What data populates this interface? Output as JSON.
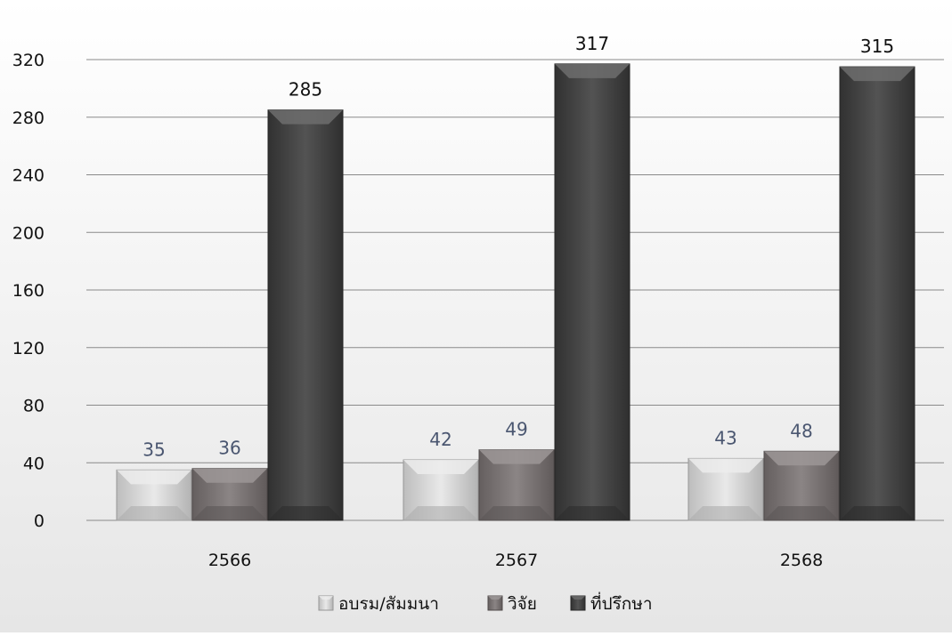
{
  "chart_data": {
    "type": "bar",
    "categories": [
      "2566",
      "2567",
      "2568"
    ],
    "series": [
      {
        "name": "อบรม/สัมมนา",
        "values": [
          35,
          42,
          43
        ],
        "color": "#e6e6e6",
        "label_color": "#4a5670"
      },
      {
        "name": "วิจัย",
        "values": [
          36,
          49,
          48
        ],
        "color": "#7b7474",
        "label_color": "#4a5670"
      },
      {
        "name": "ที่ปรึกษา",
        "values": [
          285,
          317,
          315
        ],
        "color": "#3c3c3c",
        "label_color": "#111111"
      }
    ],
    "ylim": [
      0,
      320
    ],
    "yticks": [
      0,
      40,
      80,
      120,
      160,
      200,
      240,
      280,
      320
    ],
    "grid": true,
    "legend_position": "bottom",
    "background": "#f2f2f2",
    "gridline_color": "#8a8a8a"
  }
}
